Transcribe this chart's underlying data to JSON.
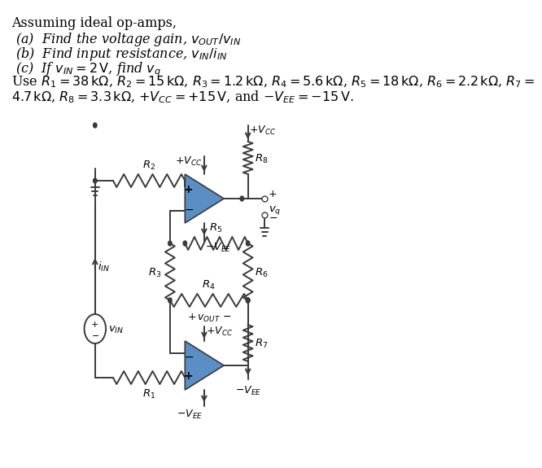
{
  "title_line": "Assuming ideal op-amps,",
  "line_a": "(a)  Find the voltage gain, $v_{OUT}/v_{IN}$",
  "line_b": "(b)  Find input resistance, $v_{IN}/i_{IN}$",
  "line_c": "(c)  If $v_{IN} = 2\\,\\mathrm{V}$, find $v_q$",
  "line_d": "Use $R_1 = 38\\,\\mathrm{k\\Omega}$, $R_2 = 15\\,\\mathrm{k\\Omega}$, $R_3 = 1.2\\,\\mathrm{k\\Omega}$, $R_4 = 5.6\\,\\mathrm{k\\Omega}$, $R_5 = 18\\,\\mathrm{k\\Omega}$, $R_6 = 2.2\\,\\mathrm{k\\Omega}$, $R_7 =$",
  "line_e": "$4.7\\,\\mathrm{k\\Omega}$, $R_8 = 3.3\\,\\mathrm{k\\Omega}$, $+V_{CC} = +15\\,\\mathrm{V}$, and $-V_{EE} = -15\\,\\mathrm{V}$.",
  "op_amp_color": "#5b8ec4",
  "line_color": "#3a3a3a",
  "bg_color": "#ffffff"
}
